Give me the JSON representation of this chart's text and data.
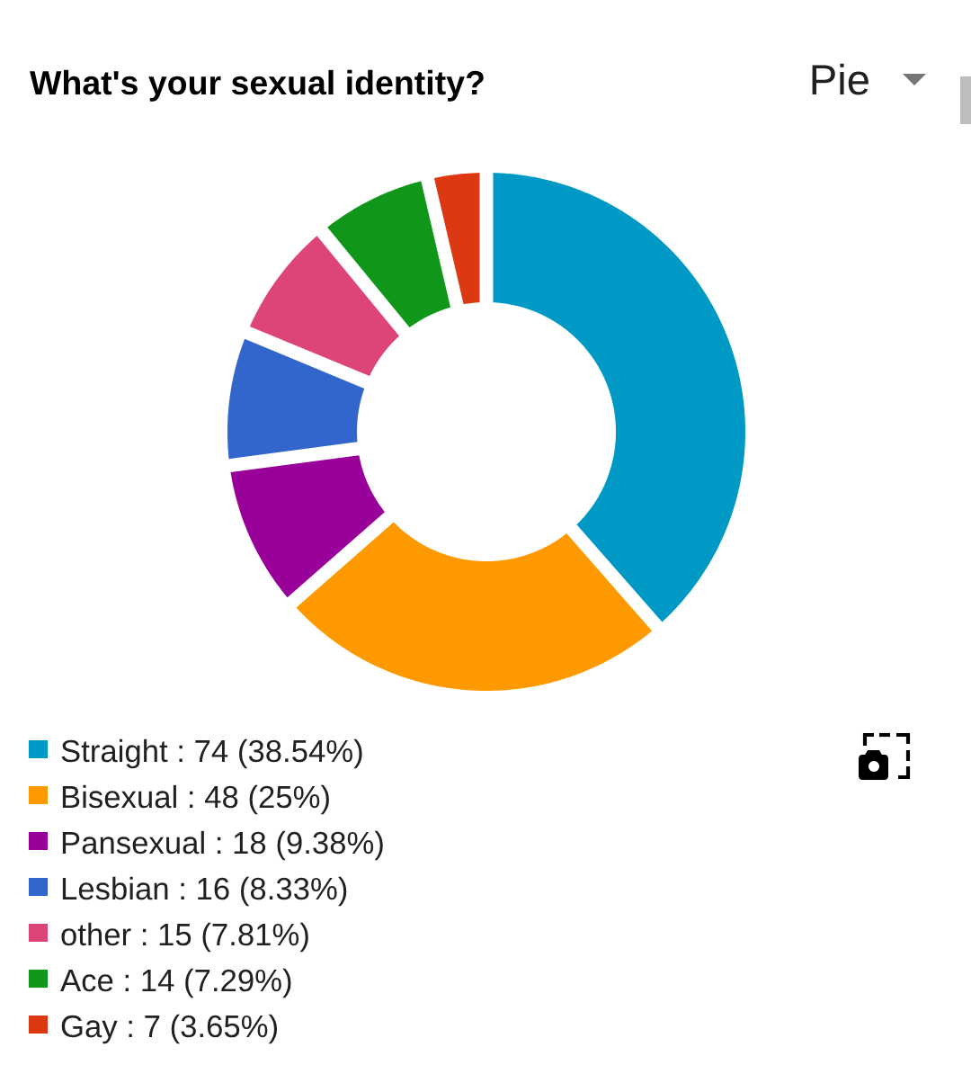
{
  "chart_data": {
    "type": "donut",
    "title": "What's your sexual identity?",
    "categories": [
      "Straight",
      "Bisexual",
      "Pansexual",
      "Lesbian",
      "other",
      "Ace",
      "Gay"
    ],
    "values": [
      74,
      48,
      18,
      16,
      15,
      14,
      7
    ],
    "value_labels": [
      "74 (38.54%)",
      "48 (25%)",
      "18 (9.38%)",
      "16 (8.33%)",
      "15 (7.81%)",
      "14 (7.29%)",
      "7 (3.65%)"
    ],
    "colors": [
      "#0099c6",
      "#ff9900",
      "#990099",
      "#3366cc",
      "#dd4477",
      "#109618",
      "#dc3912"
    ],
    "legend": "bottom left",
    "annotations": [
      "Pie"
    ]
  }
}
